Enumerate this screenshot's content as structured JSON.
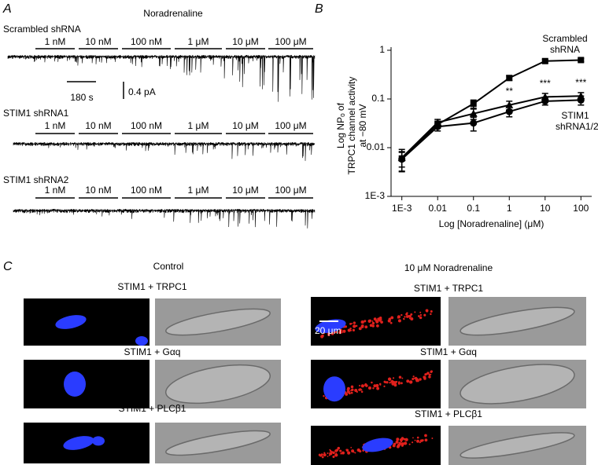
{
  "panel_a": {
    "label": "A",
    "stimulus": "Noradrenaline",
    "traces": [
      {
        "name": "Scrambled shRNA",
        "concentrations": [
          "1 nM",
          "10 nM",
          "100 nM",
          "1 μM",
          "10 μM",
          "100 μM"
        ]
      },
      {
        "name": "STIM1 shRNA1",
        "concentrations": [
          "1 nM",
          "10 nM",
          "100 nM",
          "1 μM",
          "10 μM",
          "100 μM"
        ]
      },
      {
        "name": "STIM1 shRNA2",
        "concentrations": [
          "1 nM",
          "10 nM",
          "100 nM",
          "1 μM",
          "10 μM",
          "100 μM"
        ]
      }
    ],
    "scale_time": "180 s",
    "scale_current": "0.4 pA"
  },
  "chart_data": {
    "type": "line",
    "panel_label": "B",
    "x": [
      0.001,
      0.01,
      0.1,
      1,
      10,
      100
    ],
    "xlabel": "Log [Noradrenaline] (μM)",
    "ylabel": [
      "Log NPₒ of",
      "TRPC1 channel activity",
      "at −80 mV"
    ],
    "xscale": "log",
    "yscale": "log",
    "xlim": [
      0.0005,
      200
    ],
    "ylim": [
      0.001,
      1
    ],
    "xticks": [
      {
        "value": 0.001,
        "label": "1E-3"
      },
      0.01,
      0.1,
      1,
      10,
      100
    ],
    "yticks": [
      {
        "value": 0.001,
        "label": "1E-3"
      },
      0.01,
      0.1,
      1
    ],
    "series": [
      {
        "name": "Scrambled shRNA",
        "color": "#000000",
        "marker": "square",
        "values": [
          0.006,
          0.03,
          0.08,
          0.27,
          0.6,
          0.63
        ],
        "errors": [
          0.002,
          0.005,
          0.015,
          0.03,
          0.05,
          0.05
        ]
      },
      {
        "name": "STIM1 shRNA1/2",
        "color": "#000000",
        "marker": "triangle",
        "values": [
          0.0062,
          0.033,
          0.05,
          0.075,
          0.11,
          0.115
        ],
        "errors": [
          0.003,
          0.005,
          0.012,
          0.015,
          0.02,
          0.02
        ]
      },
      {
        "color": "#000000",
        "marker": "circle",
        "values": [
          0.0058,
          0.027,
          0.032,
          0.055,
          0.09,
          0.095
        ],
        "errors": [
          0.0025,
          0.005,
          0.01,
          0.012,
          0.015,
          0.02
        ]
      }
    ],
    "annotations": [
      {
        "x": 1,
        "text": "**"
      },
      {
        "x": 10,
        "text": "***"
      },
      {
        "x": 100,
        "text": "***"
      }
    ]
  },
  "panel_c": {
    "label": "C",
    "columns": [
      {
        "title": "Control",
        "rows": [
          "STIM1 + TRPC1",
          "STIM1 + Gαq",
          "STIM1 + PLCβ1"
        ]
      },
      {
        "title": "10 μM Noradrenaline",
        "rows": [
          "STIM1 + TRPC1",
          "STIM1 + Gαq",
          "STIM1 + PLCβ1"
        ],
        "scale_bar": "20 μm"
      }
    ]
  }
}
